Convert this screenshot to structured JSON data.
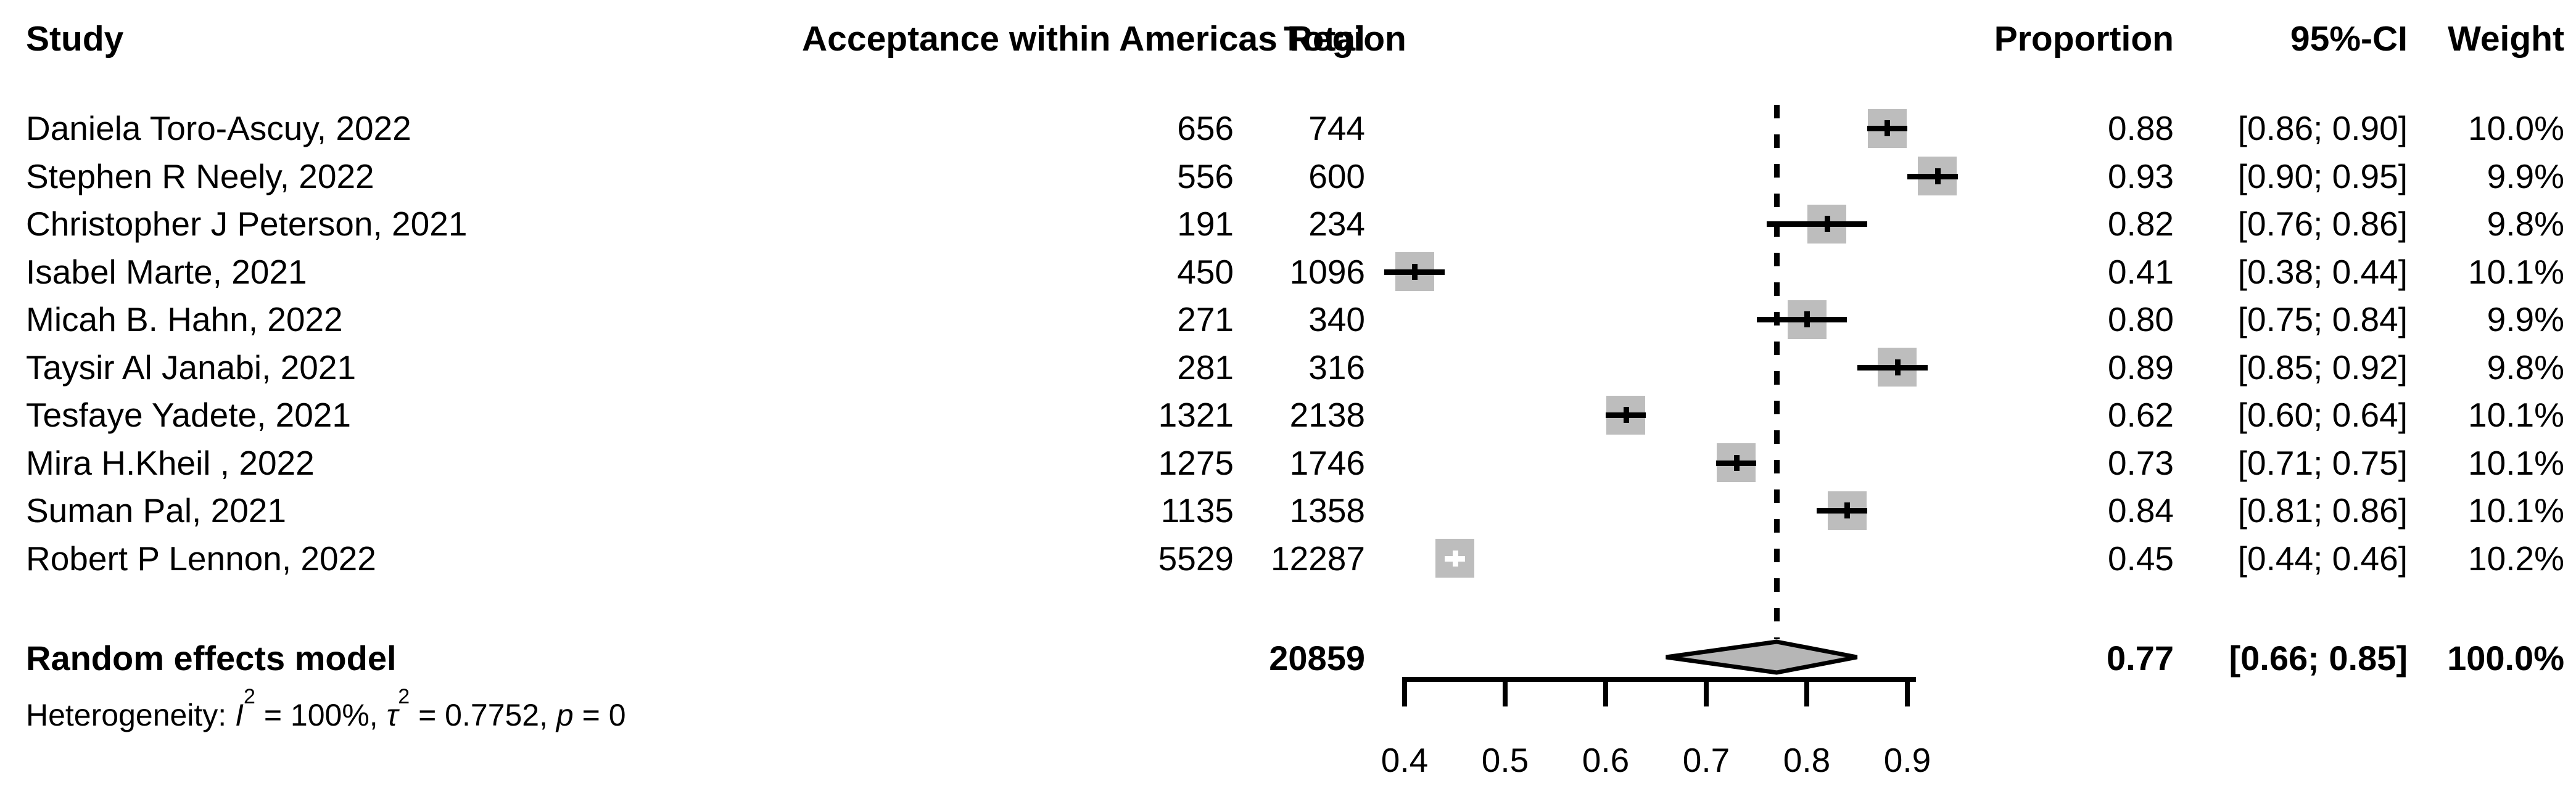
{
  "columns": {
    "study": "Study",
    "events": "Acceptance within Americas Region",
    "total": "Total",
    "proportion": "Proportion",
    "ci": "95%-CI",
    "weight": "Weight"
  },
  "colors": {
    "marker_fill": "#bdbdbd",
    "diamond_fill": "#b6b6b6",
    "line": "#000000",
    "background": "#ffffff"
  },
  "chart_data": {
    "type": "forest",
    "title": "Acceptance within Americas Region",
    "x_axis": {
      "ticks": [
        0.4,
        0.5,
        0.6,
        0.7,
        0.8,
        0.9
      ],
      "tick_labels": [
        "0.4",
        "0.5",
        "0.6",
        "0.7",
        "0.8",
        "0.9"
      ],
      "xlim": [
        0.4,
        0.95
      ],
      "dashed_reference_at": 0.77,
      "grid": false
    },
    "studies": [
      {
        "name": "Daniela Toro-Ascuy, 2022",
        "events": "656",
        "total": "744",
        "proportion": 0.88,
        "ci_low": 0.86,
        "ci_high": 0.9,
        "proportion_label": "0.88",
        "ci_label": "[0.86; 0.90]",
        "weight_label": "10.0%",
        "weight_pct": 10.0
      },
      {
        "name": "Stephen R Neely, 2022",
        "events": "556",
        "total": "600",
        "proportion": 0.93,
        "ci_low": 0.9,
        "ci_high": 0.95,
        "proportion_label": "0.93",
        "ci_label": "[0.90; 0.95]",
        "weight_label": "9.9%",
        "weight_pct": 9.9
      },
      {
        "name": "Christopher J Peterson, 2021",
        "events": "191",
        "total": "234",
        "proportion": 0.82,
        "ci_low": 0.76,
        "ci_high": 0.86,
        "proportion_label": "0.82",
        "ci_label": "[0.76; 0.86]",
        "weight_label": "9.8%",
        "weight_pct": 9.8
      },
      {
        "name": "Isabel Marte, 2021",
        "events": "450",
        "total": "1096",
        "proportion": 0.41,
        "ci_low": 0.38,
        "ci_high": 0.44,
        "proportion_label": "0.41",
        "ci_label": "[0.38; 0.44]",
        "weight_label": "10.1%",
        "weight_pct": 10.1
      },
      {
        "name": "Micah B. Hahn, 2022",
        "events": "271",
        "total": "340",
        "proportion": 0.8,
        "ci_low": 0.75,
        "ci_high": 0.84,
        "proportion_label": "0.80",
        "ci_label": "[0.75; 0.84]",
        "weight_label": "9.9%",
        "weight_pct": 9.9
      },
      {
        "name": "Taysir Al Janabi, 2021",
        "events": "281",
        "total": "316",
        "proportion": 0.89,
        "ci_low": 0.85,
        "ci_high": 0.92,
        "proportion_label": "0.89",
        "ci_label": "[0.85; 0.92]",
        "weight_label": "9.8%",
        "weight_pct": 9.8
      },
      {
        "name": "Tesfaye Yadete, 2021",
        "events": "1321",
        "total": "2138",
        "proportion": 0.62,
        "ci_low": 0.6,
        "ci_high": 0.64,
        "proportion_label": "0.62",
        "ci_label": "[0.60; 0.64]",
        "weight_label": "10.1%",
        "weight_pct": 10.1
      },
      {
        "name": "Mira H.Kheil , 2022",
        "events": "1275",
        "total": "1746",
        "proportion": 0.73,
        "ci_low": 0.71,
        "ci_high": 0.75,
        "proportion_label": "0.73",
        "ci_label": "[0.71; 0.75]",
        "weight_label": "10.1%",
        "weight_pct": 10.1
      },
      {
        "name": "Suman Pal, 2021",
        "events": "1135",
        "total": "1358",
        "proportion": 0.84,
        "ci_low": 0.81,
        "ci_high": 0.86,
        "proportion_label": "0.84",
        "ci_label": "[0.81; 0.86]",
        "weight_label": "10.1%",
        "weight_pct": 10.1
      },
      {
        "name": "Robert P Lennon, 2022",
        "events": "5529",
        "total": "12287",
        "proportion": 0.45,
        "ci_low": 0.44,
        "ci_high": 0.46,
        "proportion_label": "0.45",
        "ci_label": "[0.44; 0.46]",
        "weight_label": "10.2%",
        "weight_pct": 10.2
      }
    ],
    "summary": {
      "label": "Random effects model",
      "total": "20859",
      "proportion": 0.77,
      "ci_low": 0.66,
      "ci_high": 0.85,
      "proportion_label": "0.77",
      "ci_label": "[0.66; 0.85]",
      "weight_label": "100.0%"
    },
    "heterogeneity": {
      "prefix": "Heterogeneity: ",
      "i_symbol": "I",
      "i_sup": "2",
      "i_eq": " = 100%, ",
      "tau_symbol": "τ",
      "tau_sup": "2",
      "tau_eq": " = 0.7752, ",
      "p_symbol": "p",
      "p_eq": " = 0"
    }
  }
}
